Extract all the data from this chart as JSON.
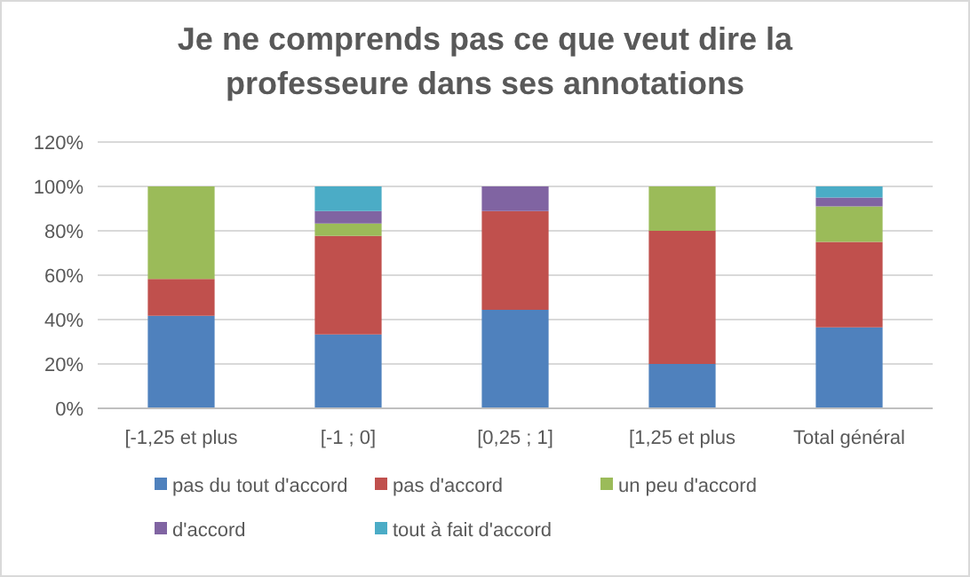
{
  "chart_data": {
    "type": "bar",
    "title": "Je ne comprends pas ce que veut dire la professeure dans ses annotations",
    "stacked": true,
    "categories": [
      "[-1,25 et plus",
      "[-1 ; 0]",
      "[0,25 ; 1]",
      "[1,25 et plus",
      "Total général"
    ],
    "series": [
      {
        "name": "pas du tout d'accord",
        "color": "#4f81bd",
        "values": [
          41.7,
          33.3,
          44.4,
          20,
          36.5
        ]
      },
      {
        "name": "pas d'accord",
        "color": "#c0504d",
        "values": [
          16.6,
          44.4,
          44.5,
          60,
          38.5
        ]
      },
      {
        "name": "un peu d'accord",
        "color": "#9bbb59",
        "values": [
          41.7,
          5.6,
          0,
          20,
          16
        ]
      },
      {
        "name": "d'accord",
        "color": "#8064a2",
        "values": [
          0,
          5.6,
          11.1,
          0,
          4
        ]
      },
      {
        "name": "tout à fait d'accord",
        "color": "#4bacc6",
        "values": [
          0,
          11.1,
          0,
          0,
          5
        ]
      }
    ],
    "ylim": [
      0,
      120
    ],
    "yticks": [
      {
        "value": 0,
        "label": "0%"
      },
      {
        "value": 20,
        "label": "20%"
      },
      {
        "value": 40,
        "label": "40%"
      },
      {
        "value": 60,
        "label": "60%"
      },
      {
        "value": 80,
        "label": "80%"
      },
      {
        "value": 100,
        "label": "100%"
      },
      {
        "value": 120,
        "label": "120%"
      }
    ],
    "grid": "y",
    "legend": "bottom"
  }
}
